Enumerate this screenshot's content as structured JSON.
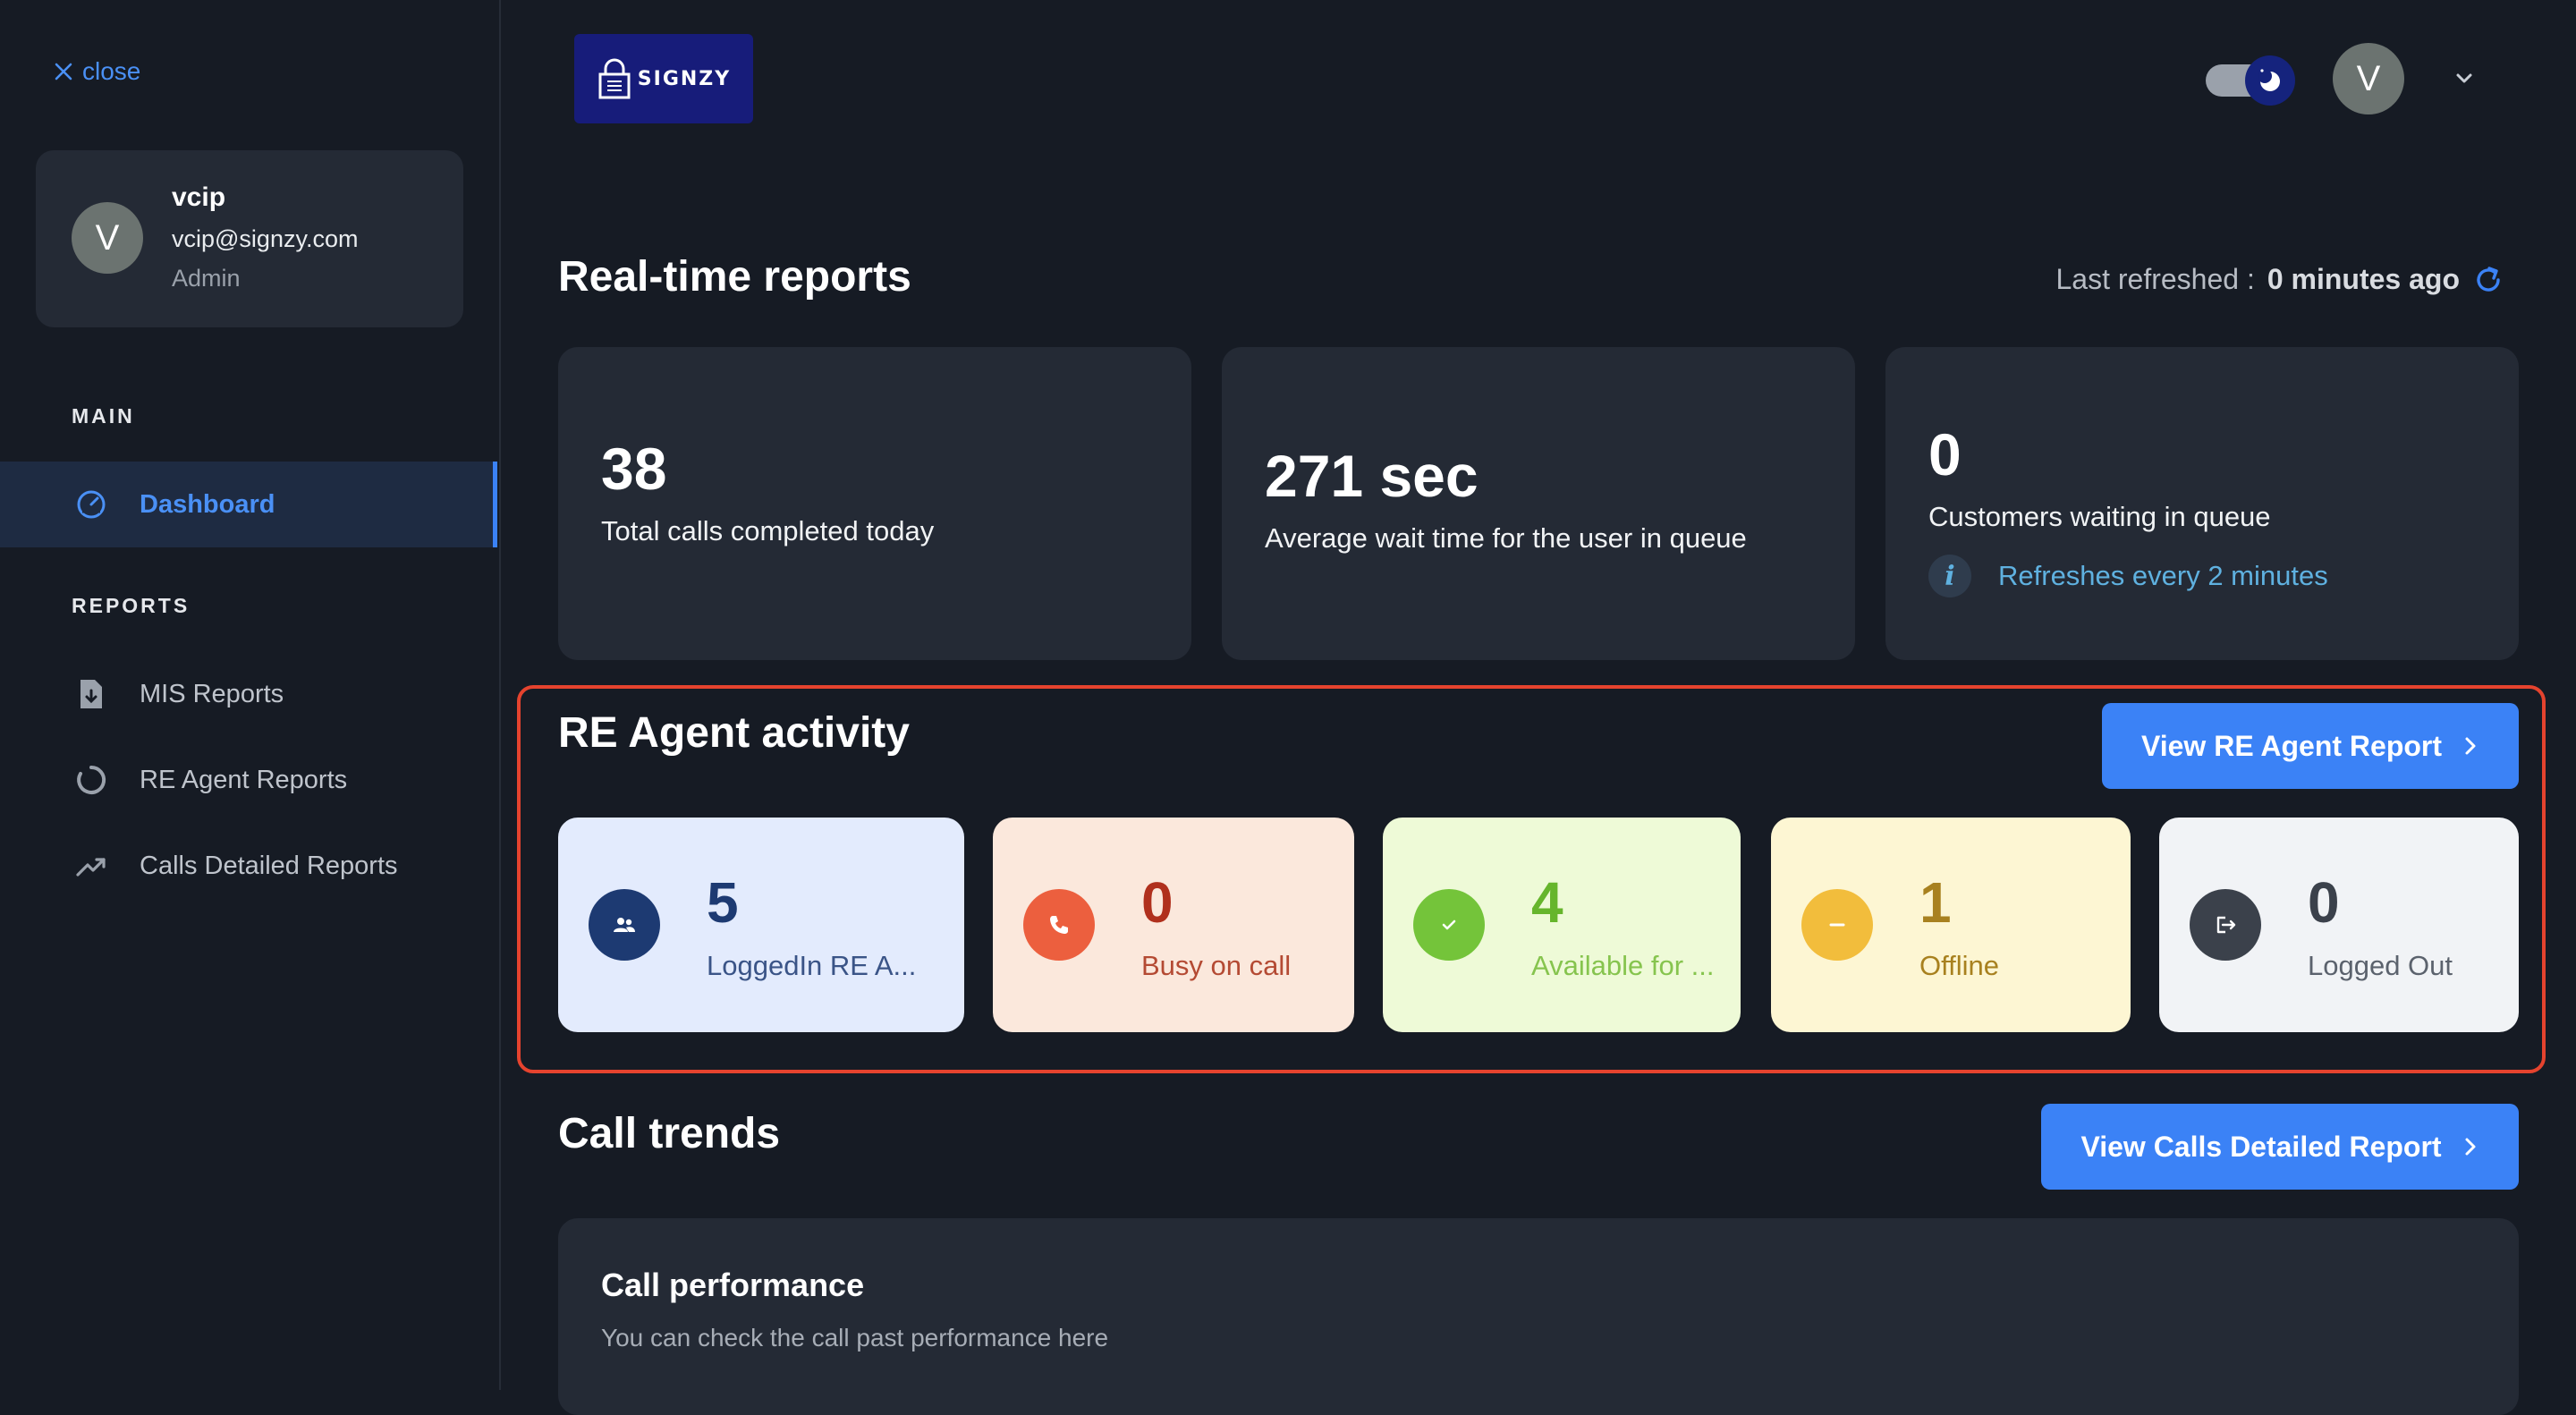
{
  "sidebar": {
    "close_label": "close",
    "profile": {
      "initial": "V",
      "name": "vcip",
      "email": "vcip@signzy.com",
      "role": "Admin"
    },
    "main_section": "MAIN",
    "reports_section": "REPORTS",
    "items": [
      {
        "label": "Dashboard",
        "icon": "speedometer-icon"
      },
      {
        "label": "MIS Reports",
        "icon": "file-download-icon"
      },
      {
        "label": "RE Agent Reports",
        "icon": "circle-progress-icon"
      },
      {
        "label": "Calls Detailed Reports",
        "icon": "trending-up-icon"
      }
    ]
  },
  "header": {
    "logo_text": "SIGNZY",
    "avatar_initial": "V"
  },
  "realtime": {
    "title": "Real-time reports",
    "last_refreshed_label": "Last refreshed :",
    "last_refreshed_value": "0 minutes ago",
    "cards": [
      {
        "value": "38",
        "label": "Total calls completed today"
      },
      {
        "value": "271 sec",
        "label": "Average wait time for the user in queue"
      },
      {
        "value": "0",
        "label": "Customers waiting in queue",
        "note": "Refreshes every 2 minutes"
      }
    ]
  },
  "agent_activity": {
    "title": "RE Agent activity",
    "button_label": "View RE Agent Report",
    "cards": [
      {
        "count": "5",
        "label": "LoggedIn RE A...",
        "icon": "users-icon"
      },
      {
        "count": "0",
        "label": "Busy on call",
        "icon": "phone-icon"
      },
      {
        "count": "4",
        "label": "Available for ...",
        "icon": "check-icon"
      },
      {
        "count": "1",
        "label": "Offline",
        "icon": "minus-icon"
      },
      {
        "count": "0",
        "label": "Logged Out",
        "icon": "logout-icon"
      }
    ]
  },
  "call_trends": {
    "title": "Call trends",
    "button_label": "View Calls Detailed Report",
    "performance_title": "Call performance",
    "performance_subtitle": "You can check the call past performance here"
  },
  "colors": {
    "accent": "#3b82f6",
    "highlight_border": "#e5432e",
    "background": "#161b24",
    "card": "#242a35"
  }
}
